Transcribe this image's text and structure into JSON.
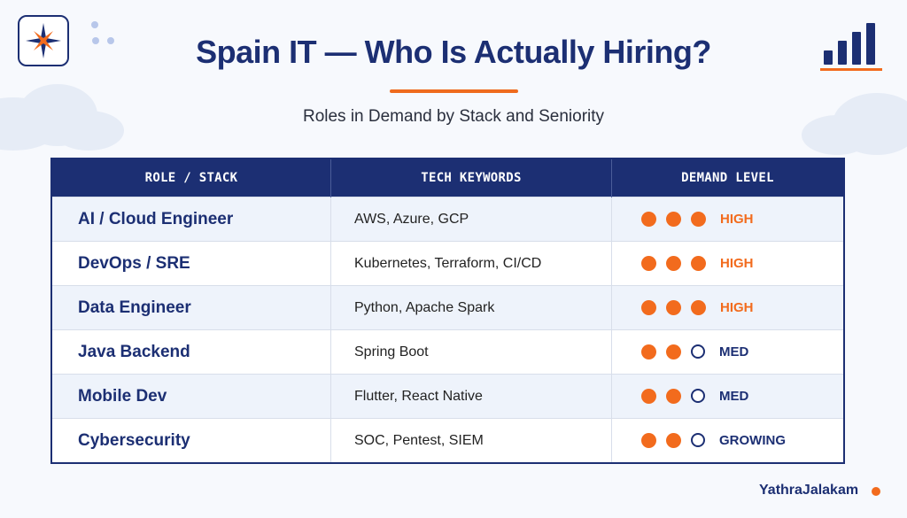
{
  "header": {
    "title": "Spain IT — Who Is Actually Hiring?",
    "subtitle": "Roles in Demand by Stack and Seniority"
  },
  "table": {
    "columns": [
      "ROLE / STACK",
      "TECH KEYWORDS",
      "DEMAND LEVEL"
    ],
    "rows": [
      {
        "role": "AI / Cloud Engineer",
        "keywords": "AWS, Azure, GCP",
        "dots_filled": 3,
        "dots_total": 3,
        "level": "HIGH"
      },
      {
        "role": "DevOps / SRE",
        "keywords": "Kubernetes, Terraform, CI/CD",
        "dots_filled": 3,
        "dots_total": 3,
        "level": "HIGH"
      },
      {
        "role": "Data Engineer",
        "keywords": "Python, Apache Spark",
        "dots_filled": 3,
        "dots_total": 3,
        "level": "HIGH"
      },
      {
        "role": "Java Backend",
        "keywords": "Spring Boot",
        "dots_filled": 2,
        "dots_total": 3,
        "level": "MED"
      },
      {
        "role": "Mobile Dev",
        "keywords": "Flutter, React Native",
        "dots_filled": 2,
        "dots_total": 3,
        "level": "MED"
      },
      {
        "role": "Cybersecurity",
        "keywords": "SOC, Pentest, SIEM",
        "dots_filled": 2,
        "dots_total": 3,
        "level": "GROWING"
      }
    ]
  },
  "footer": {
    "brand": "YathraJalakam"
  },
  "icons": {
    "logo": "compass-star-icon",
    "header_right": "bar-chart-icon"
  },
  "colors": {
    "navy": "#1c2f73",
    "accent": "#f26b1d",
    "row_alt": "#eef3fb"
  }
}
